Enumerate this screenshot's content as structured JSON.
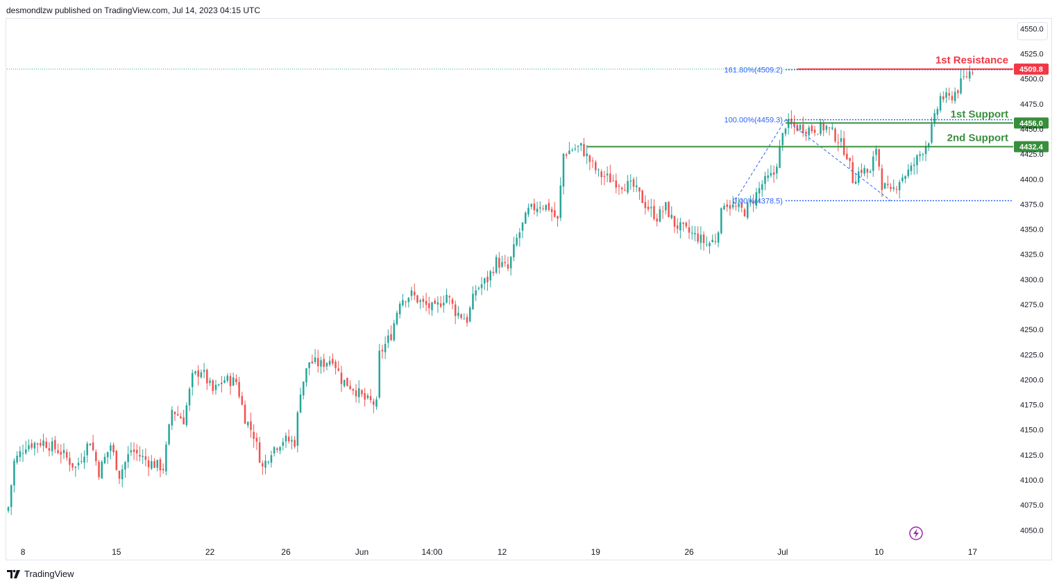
{
  "header": {
    "publisher": "desmondlzw published on TradingView.com, Jul 14, 2023 04:15 UTC"
  },
  "footer": {
    "brand": "TradingView"
  },
  "colors": {
    "up": "#26a69a",
    "down": "#ef5350",
    "resistance": "#f23645",
    "support": "#388e3c",
    "fib": "#2962ff",
    "axis_text": "#131722"
  },
  "icons": {
    "logo": "tradingview-logo-icon",
    "flash": "lightning-icon"
  },
  "chart_data": {
    "type": "candlestick",
    "ylim": [
      4035,
      4560
    ],
    "y_ticks": [
      "4050.0",
      "4075.0",
      "4100.0",
      "4125.0",
      "4150.0",
      "4175.0",
      "4200.0",
      "4225.0",
      "4250.0",
      "4275.0",
      "4300.0",
      "4325.0",
      "4350.0",
      "4375.0",
      "4400.0",
      "4425.0",
      "4450.0",
      "4475.0",
      "4500.0",
      "4525.0",
      "4550.0"
    ],
    "x_ticks": [
      {
        "label": "8",
        "bar": 5
      },
      {
        "label": "15",
        "bar": 37
      },
      {
        "label": "22",
        "bar": 69
      },
      {
        "label": "26",
        "bar": 95
      },
      {
        "label": "Jun",
        "bar": 121
      },
      {
        "label": "14:00",
        "bar": 145
      },
      {
        "label": "12",
        "bar": 169
      },
      {
        "label": "19",
        "bar": 201
      },
      {
        "label": "26",
        "bar": 233
      },
      {
        "label": "Jul",
        "bar": 265
      },
      {
        "label": "10",
        "bar": 298
      },
      {
        "label": "17",
        "bar": 330
      }
    ],
    "bar_count": 347,
    "closes": [
      {
        "bar": 0,
        "price": 4073
      },
      {
        "bar": 2,
        "price": 4118
      },
      {
        "bar": 6,
        "price": 4135
      },
      {
        "bar": 12,
        "price": 4138
      },
      {
        "bar": 18,
        "price": 4128
      },
      {
        "bar": 23,
        "price": 4112
      },
      {
        "bar": 28,
        "price": 4140
      },
      {
        "bar": 31,
        "price": 4108
      },
      {
        "bar": 35,
        "price": 4135
      },
      {
        "bar": 38,
        "price": 4105
      },
      {
        "bar": 42,
        "price": 4130
      },
      {
        "bar": 48,
        "price": 4118
      },
      {
        "bar": 53,
        "price": 4112
      },
      {
        "bar": 56,
        "price": 4170
      },
      {
        "bar": 60,
        "price": 4160
      },
      {
        "bar": 63,
        "price": 4202
      },
      {
        "bar": 66,
        "price": 4210
      },
      {
        "bar": 70,
        "price": 4188
      },
      {
        "bar": 74,
        "price": 4200
      },
      {
        "bar": 78,
        "price": 4198
      },
      {
        "bar": 81,
        "price": 4162
      },
      {
        "bar": 84,
        "price": 4145
      },
      {
        "bar": 87,
        "price": 4112
      },
      {
        "bar": 90,
        "price": 4130
      },
      {
        "bar": 94,
        "price": 4140
      },
      {
        "bar": 98,
        "price": 4138
      },
      {
        "bar": 100,
        "price": 4190
      },
      {
        "bar": 103,
        "price": 4218
      },
      {
        "bar": 107,
        "price": 4215
      },
      {
        "bar": 111,
        "price": 4222
      },
      {
        "bar": 114,
        "price": 4200
      },
      {
        "bar": 118,
        "price": 4192
      },
      {
        "bar": 122,
        "price": 4180
      },
      {
        "bar": 126,
        "price": 4175
      },
      {
        "bar": 127,
        "price": 4225
      },
      {
        "bar": 131,
        "price": 4245
      },
      {
        "bar": 134,
        "price": 4280
      },
      {
        "bar": 138,
        "price": 4285
      },
      {
        "bar": 142,
        "price": 4275
      },
      {
        "bar": 146,
        "price": 4270
      },
      {
        "bar": 150,
        "price": 4285
      },
      {
        "bar": 153,
        "price": 4268
      },
      {
        "bar": 157,
        "price": 4260
      },
      {
        "bar": 160,
        "price": 4290
      },
      {
        "bar": 164,
        "price": 4300
      },
      {
        "bar": 167,
        "price": 4318
      },
      {
        "bar": 171,
        "price": 4310
      },
      {
        "bar": 174,
        "price": 4340
      },
      {
        "bar": 178,
        "price": 4368
      },
      {
        "bar": 182,
        "price": 4375
      },
      {
        "bar": 185,
        "price": 4372
      },
      {
        "bar": 188,
        "price": 4358
      },
      {
        "bar": 190,
        "price": 4425
      },
      {
        "bar": 193,
        "price": 4430
      },
      {
        "bar": 196,
        "price": 4432
      },
      {
        "bar": 199,
        "price": 4418
      },
      {
        "bar": 202,
        "price": 4405
      },
      {
        "bar": 206,
        "price": 4400
      },
      {
        "bar": 210,
        "price": 4395
      },
      {
        "bar": 214,
        "price": 4392
      },
      {
        "bar": 218,
        "price": 4375
      },
      {
        "bar": 222,
        "price": 4362
      },
      {
        "bar": 225,
        "price": 4372
      },
      {
        "bar": 228,
        "price": 4355
      },
      {
        "bar": 232,
        "price": 4348
      },
      {
        "bar": 236,
        "price": 4342
      },
      {
        "bar": 239,
        "price": 4335
      },
      {
        "bar": 242,
        "price": 4340
      },
      {
        "bar": 245,
        "price": 4378
      },
      {
        "bar": 248,
        "price": 4372
      },
      {
        "bar": 252,
        "price": 4368
      },
      {
        "bar": 255,
        "price": 4380
      },
      {
        "bar": 258,
        "price": 4395
      },
      {
        "bar": 262,
        "price": 4405
      },
      {
        "bar": 264,
        "price": 4430
      },
      {
        "bar": 266,
        "price": 4455
      },
      {
        "bar": 270,
        "price": 4452
      },
      {
        "bar": 275,
        "price": 4450
      },
      {
        "bar": 280,
        "price": 4452
      },
      {
        "bar": 284,
        "price": 4440
      },
      {
        "bar": 287,
        "price": 4425
      },
      {
        "bar": 289,
        "price": 4400
      },
      {
        "bar": 292,
        "price": 4410
      },
      {
        "bar": 295,
        "price": 4405
      },
      {
        "bar": 297,
        "price": 4432
      },
      {
        "bar": 299,
        "price": 4395
      },
      {
        "bar": 302,
        "price": 4385
      },
      {
        "bar": 305,
        "price": 4400
      },
      {
        "bar": 309,
        "price": 4410
      },
      {
        "bar": 312,
        "price": 4425
      },
      {
        "bar": 315,
        "price": 4440
      },
      {
        "bar": 317,
        "price": 4460
      },
      {
        "bar": 319,
        "price": 4482
      },
      {
        "bar": 322,
        "price": 4480
      },
      {
        "bar": 325,
        "price": 4490
      },
      {
        "bar": 327,
        "price": 4500
      },
      {
        "bar": 329,
        "price": 4507
      },
      {
        "bar": 330,
        "price": 4509.8
      }
    ],
    "levels": [
      {
        "label": "1st Resistance",
        "price": 4509.8,
        "tag": "4509.8",
        "type": "resistance",
        "from_bar": 270
      },
      {
        "label": "1st Support",
        "price": 4456.0,
        "tag": "4456.0",
        "type": "support",
        "from_bar": 266
      },
      {
        "label": "2nd Support",
        "price": 4432.4,
        "tag": "4432.4",
        "type": "support",
        "from_bar": 198
      }
    ],
    "fib": {
      "start_bar": 266,
      "end_bar": 302,
      "levels": [
        {
          "label": "161.80%(4509.2)",
          "price": 4509.2
        },
        {
          "label": "100.00%(4459.3)",
          "price": 4459.3
        },
        {
          "label": "0.00%(4378.5)",
          "price": 4378.5
        }
      ]
    },
    "last_price": 4509.8
  }
}
